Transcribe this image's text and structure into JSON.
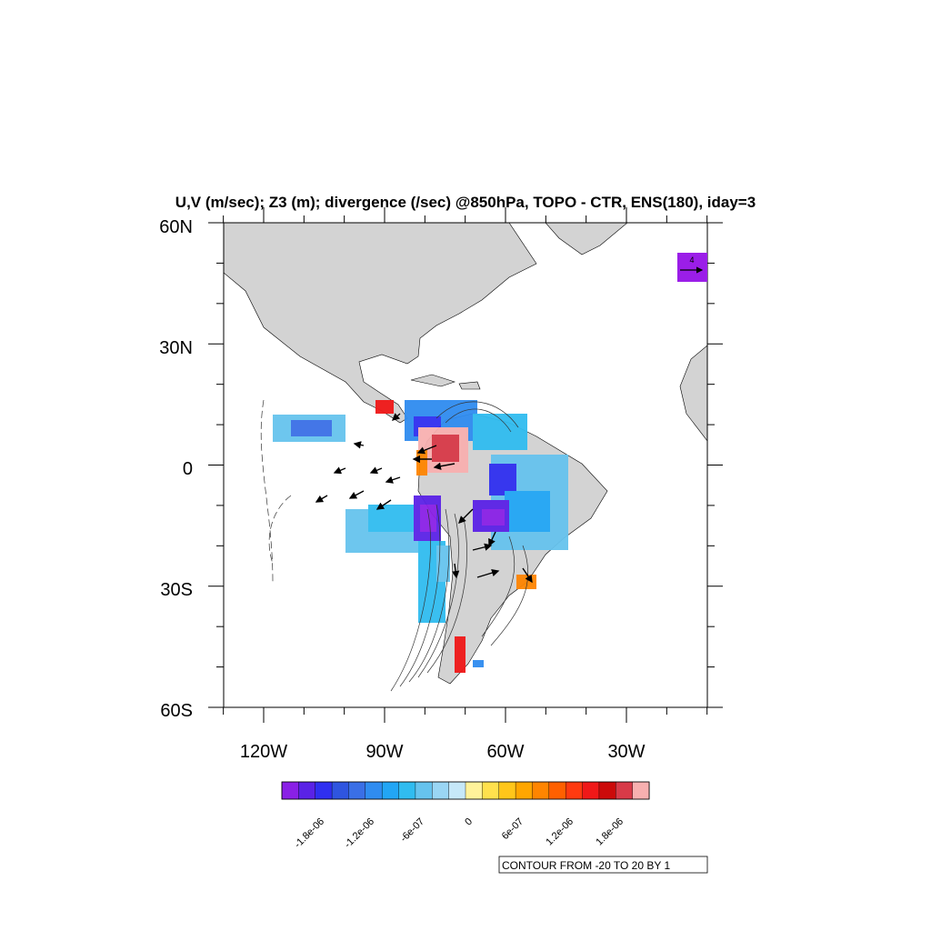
{
  "title": "U,V (m/sec); Z3 (m); divergence (/sec) @850hPa, TOPO - CTR, ENS(180), iday=3",
  "axes": {
    "lat_labels": [
      "60N",
      "30N",
      "0",
      "30S",
      "60S"
    ],
    "lon_labels": [
      "120W",
      "90W",
      "60W",
      "30W"
    ]
  },
  "reference_vector": {
    "label": "4",
    "color": "#9b1ee8"
  },
  "colorbar": {
    "colors": [
      "#8a20e6",
      "#5a22e6",
      "#2f2ff0",
      "#2f55e0",
      "#3a6fe6",
      "#2f8cf0",
      "#22a6f5",
      "#30bcf0",
      "#66c3ee",
      "#9ad6f4",
      "#c6e8f8",
      "#fff29a",
      "#ffe14d",
      "#ffc61a",
      "#ffa600",
      "#ff8500",
      "#ff6000",
      "#ff3a10",
      "#f01818",
      "#cc0a0a",
      "#d83a48",
      "#f8b0b0"
    ],
    "labels": [
      "-1.8e-06",
      "-1.2e-06",
      "-6e-07",
      "0",
      "6e-07",
      "1.2e-06",
      "1.8e-06"
    ]
  },
  "contour_info": "CONTOUR FROM -20 TO 20 BY 1",
  "colors": {
    "land": "#d3d3d3",
    "coast": "#000000"
  }
}
